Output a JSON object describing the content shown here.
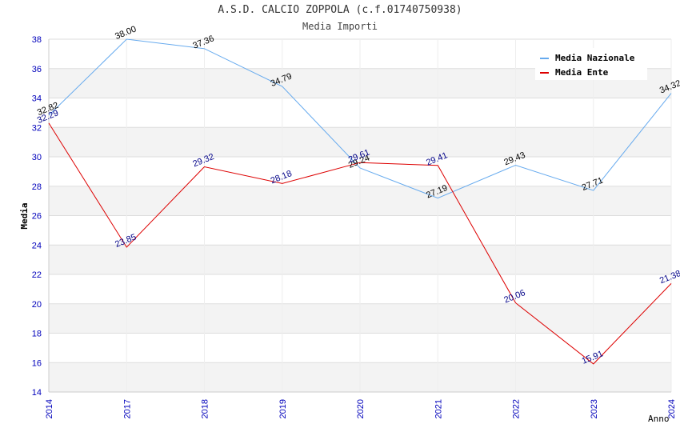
{
  "header": {
    "title": "A.S.D. CALCIO ZOPPOLA (c.f.01740750938)",
    "subtitle": "Media Importi"
  },
  "chart_data": {
    "type": "line",
    "title": "A.S.D. CALCIO ZOPPOLA (c.f.01740750938)",
    "subtitle": "Media Importi",
    "xlabel": "Anno",
    "ylabel": "Media",
    "categories": [
      "2014",
      "2017",
      "2018",
      "2019",
      "2020",
      "2021",
      "2022",
      "2023",
      "2024"
    ],
    "yticks": [
      "14",
      "16",
      "18",
      "20",
      "22",
      "24",
      "26",
      "28",
      "30",
      "32",
      "34",
      "36",
      "38"
    ],
    "ylim": [
      14,
      38
    ],
    "grid": true,
    "legend_position": "top-right",
    "series": [
      {
        "name": "Media Nazionale",
        "color": "#66aaee",
        "values": [
          32.82,
          38.0,
          37.36,
          34.79,
          29.24,
          27.19,
          29.43,
          27.71,
          34.32
        ],
        "labels": [
          "32.82",
          "38.00",
          "37.36",
          "34.79",
          "29.24",
          "27.19",
          "29.43",
          "27.71",
          "34.32"
        ]
      },
      {
        "name": "Media Ente",
        "color": "#dd0000",
        "values": [
          32.29,
          23.85,
          29.32,
          28.18,
          29.61,
          29.41,
          20.06,
          15.91,
          21.38
        ],
        "labels": [
          "32.29",
          "23.85",
          "29.32",
          "28.18",
          "29.61",
          "29.41",
          "20.06",
          "15.91",
          "21.38"
        ]
      }
    ]
  }
}
